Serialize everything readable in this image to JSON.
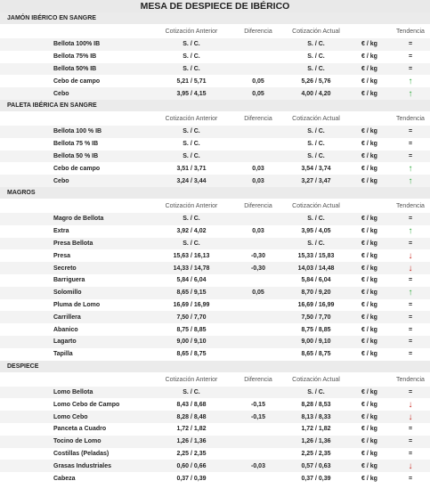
{
  "title": "MESA DE DESPIECE DE IBÉRICO",
  "sections": [
    {
      "title": "JAMÓN IBÉRICO EN SANGRE",
      "columns": [
        "Cotización Anterior",
        "Diferencia",
        "Cotización Actual",
        "Tendencia"
      ],
      "rows": [
        {
          "name": "Bellota 100% IB",
          "previous": "S. / C.",
          "difference": null,
          "current": "S. / C.",
          "unit": "€ / kg",
          "trend": "="
        },
        {
          "name": "Bellota 75% IB",
          "previous": "S. / C.",
          "difference": null,
          "current": "S. / C.",
          "unit": "€ / kg",
          "trend": "="
        },
        {
          "name": "Bellota 50% IB",
          "previous": "S. / C.",
          "difference": null,
          "current": "S. / C.",
          "unit": "€ / kg",
          "trend": "="
        },
        {
          "name": "Cebo de campo",
          "previous": "5,21 / 5,71",
          "difference": "0,05",
          "current": "5,26 / 5,76",
          "unit": "€ / kg",
          "trend": "↑"
        },
        {
          "name": "Cebo",
          "previous": "3,95 / 4,15",
          "difference": "0,05",
          "current": "4,00 / 4,20",
          "unit": "€ / kg",
          "trend": "↑"
        }
      ]
    },
    {
      "title": "PALETA IBÉRICA EN SANGRE",
      "columns": [
        "Cotización Anterior",
        "Diferencia",
        "Cotización Actual",
        "Tendencia"
      ],
      "rows": [
        {
          "name": "Bellota 100 % IB",
          "previous": "S. / C.",
          "difference": null,
          "current": "S. / C.",
          "unit": "€ / kg",
          "trend": "="
        },
        {
          "name": "Bellota 75 % IB",
          "previous": "S. / C.",
          "difference": null,
          "current": "S. / C.",
          "unit": "€ / kg",
          "trend": "="
        },
        {
          "name": "Bellota 50 % IB",
          "previous": "S. / C.",
          "difference": null,
          "current": "S. / C.",
          "unit": "€ / kg",
          "trend": "="
        },
        {
          "name": "Cebo de campo",
          "previous": "3,51 / 3,71",
          "difference": "0,03",
          "current": "3,54 / 3,74",
          "unit": "€ / kg",
          "trend": "↑"
        },
        {
          "name": "Cebo",
          "previous": "3,24 / 3,44",
          "difference": "0,03",
          "current": "3,27 / 3,47",
          "unit": "€ / kg",
          "trend": "↑"
        }
      ]
    },
    {
      "title": "MAGROS",
      "columns": [
        "Cotización Anterior",
        "Diferencia",
        "Cotización Actual",
        "Tendencia"
      ],
      "rows": [
        {
          "name": "Magro de Bellota",
          "previous": "S. / C.",
          "difference": null,
          "current": "S. / C.",
          "unit": "€ / kg",
          "trend": "="
        },
        {
          "name": "Extra",
          "previous": "3,92 / 4,02",
          "difference": "0,03",
          "current": "3,95 / 4,05",
          "unit": "€ / kg",
          "trend": "↑"
        },
        {
          "name": "Presa Bellota",
          "previous": "S. / C.",
          "difference": null,
          "current": "S. / C.",
          "unit": "€ / kg",
          "trend": "="
        },
        {
          "name": "Presa",
          "previous": "15,63 / 16,13",
          "difference": "-0,30",
          "current": "15,33 / 15,83",
          "unit": "€ / kg",
          "trend": "↓"
        },
        {
          "name": "Secreto",
          "previous": "14,33 / 14,78",
          "difference": "-0,30",
          "current": "14,03 / 14,48",
          "unit": "€ / kg",
          "trend": "↓"
        },
        {
          "name": "Barriguera",
          "previous": "5,84 / 6,04",
          "difference": null,
          "current": "5,84 / 6,04",
          "unit": "€ / kg",
          "trend": "="
        },
        {
          "name": "Solomillo",
          "previous": "8,65 / 9,15",
          "difference": "0,05",
          "current": "8,70 / 9,20",
          "unit": "€ / kg",
          "trend": "↑"
        },
        {
          "name": "Pluma de Lomo",
          "previous": "16,69 / 16,99",
          "difference": null,
          "current": "16,69 / 16,99",
          "unit": "€ / kg",
          "trend": "="
        },
        {
          "name": "Carrillera",
          "previous": "7,50 / 7,70",
          "difference": null,
          "current": "7,50 / 7,70",
          "unit": "€ / kg",
          "trend": "="
        },
        {
          "name": "Abanico",
          "previous": "8,75 / 8,85",
          "difference": null,
          "current": "8,75 / 8,85",
          "unit": "€ / kg",
          "trend": "="
        },
        {
          "name": "Lagarto",
          "previous": "9,00 / 9,10",
          "difference": null,
          "current": "9,00 / 9,10",
          "unit": "€ / kg",
          "trend": "="
        },
        {
          "name": "Tapilla",
          "previous": "8,65 / 8,75",
          "difference": null,
          "current": "8,65 / 8,75",
          "unit": "€ / kg",
          "trend": "="
        }
      ]
    },
    {
      "title": "DESPIECE",
      "columns": [
        "Cotización Anterior",
        "Diferencia",
        "Cotización Actual",
        "Tendencia"
      ],
      "rows": [
        {
          "name": "Lomo Bellota",
          "previous": "S. / C.",
          "difference": null,
          "current": "S. / C.",
          "unit": "€ / kg",
          "trend": "="
        },
        {
          "name": "Lomo Cebo de Campo",
          "previous": "8,43 / 8,68",
          "difference": "-0,15",
          "current": "8,28 / 8,53",
          "unit": "€ / kg",
          "trend": "↓"
        },
        {
          "name": "Lomo Cebo",
          "previous": "8,28 / 8,48",
          "difference": "-0,15",
          "current": "8,13 / 8,33",
          "unit": "€ / kg",
          "trend": "↓"
        },
        {
          "name": "Panceta a Cuadro",
          "previous": "1,72 / 1,82",
          "difference": null,
          "current": "1,72 / 1,82",
          "unit": "€ / kg",
          "trend": "="
        },
        {
          "name": "Tocino de Lomo",
          "previous": "1,26 / 1,36",
          "difference": null,
          "current": "1,26 / 1,36",
          "unit": "€ / kg",
          "trend": "="
        },
        {
          "name": "Costillas (Peladas)",
          "previous": "2,25 / 2,35",
          "difference": null,
          "current": "2,25 / 2,35",
          "unit": "€ / kg",
          "trend": "="
        },
        {
          "name": "Grasas Industriales",
          "previous": "0,60 / 0,66",
          "difference": "-0,03",
          "current": "0,57 / 0,63",
          "unit": "€ / kg",
          "trend": "↓"
        },
        {
          "name": "Cabeza",
          "previous": "0,37 / 0,39",
          "difference": null,
          "current": "0,37 / 0,39",
          "unit": "€ / kg",
          "trend": "="
        }
      ]
    }
  ]
}
